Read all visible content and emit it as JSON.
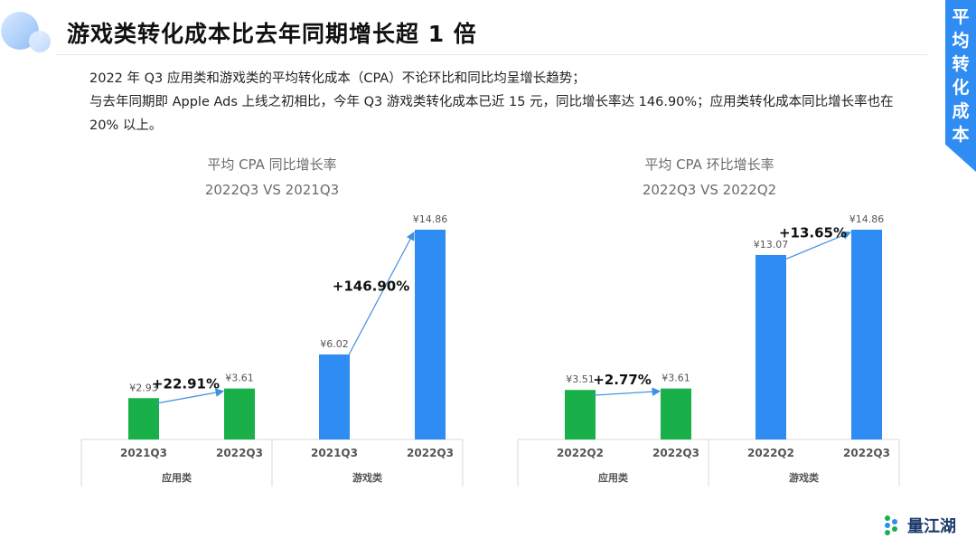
{
  "title": "游戏类转化成本比去年同期增长超 1 倍",
  "side_tab": "平均转化成本",
  "description": [
    "2022 年 Q3 应用类和游戏类的平均转化成本（CPA）不论环比和同比均呈增长趋势；",
    "与去年同期即 Apple Ads 上线之初相比，今年 Q3 游戏类转化成本已近 15 元，同比增长率达 146.90%；应用类转化成本同比增长率也在 20% 以上。"
  ],
  "colors": {
    "app": "#19b04a",
    "game": "#2f8cf2",
    "accent": "#2f8cf2",
    "arrow": "#3f8fe0"
  },
  "logo_text": "量江湖",
  "watermark_text": "量江湖",
  "chart_data": [
    {
      "type": "bar",
      "title": "平均 CPA 同比增长率",
      "subtitle": "2022Q3 VS 2021Q3",
      "groups": [
        {
          "name": "应用类",
          "categories": [
            "2021Q3",
            "2022Q3"
          ],
          "values": [
            2.93,
            3.61
          ],
          "labels": [
            "¥2.93",
            "¥3.61"
          ],
          "growth": "+22.91%",
          "color": "app"
        },
        {
          "name": "游戏类",
          "categories": [
            "2021Q3",
            "2022Q3"
          ],
          "values": [
            6.02,
            14.86
          ],
          "labels": [
            "¥6.02",
            "¥14.86"
          ],
          "growth": "+146.90%",
          "color": "game"
        }
      ],
      "ylim": [
        0,
        16
      ]
    },
    {
      "type": "bar",
      "title": "平均 CPA 环比增长率",
      "subtitle": "2022Q3 VS 2022Q2",
      "groups": [
        {
          "name": "应用类",
          "categories": [
            "2022Q2",
            "2022Q3"
          ],
          "values": [
            3.51,
            3.61
          ],
          "labels": [
            "¥3.51",
            "¥3.61"
          ],
          "growth": "+2.77%",
          "color": "app"
        },
        {
          "name": "游戏类",
          "categories": [
            "2022Q2",
            "2022Q3"
          ],
          "values": [
            13.07,
            14.86
          ],
          "labels": [
            "¥13.07",
            "¥14.86"
          ],
          "growth": "+13.65%",
          "color": "game"
        }
      ],
      "ylim": [
        0,
        16
      ]
    }
  ]
}
